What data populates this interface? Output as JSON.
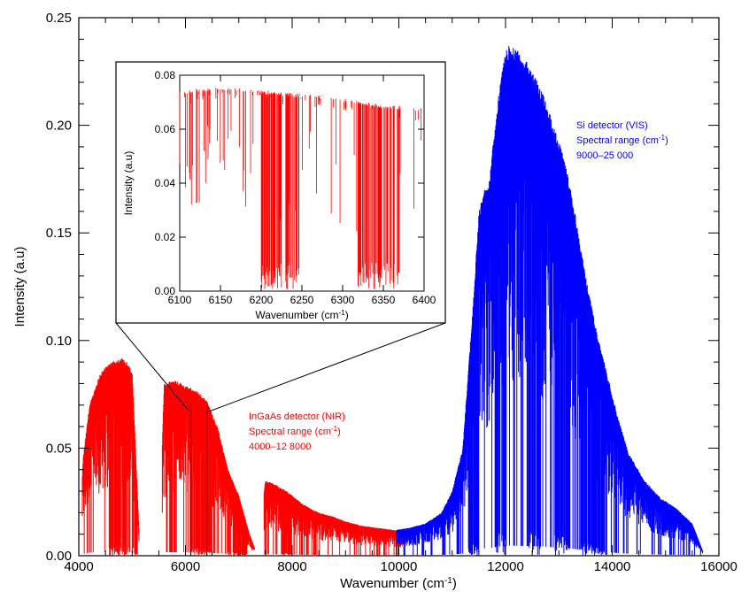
{
  "chart_data": [
    {
      "type": "line",
      "title": "",
      "xlabel": "Wavenumber (cm",
      "xlabel_sup": "-1",
      "xlabel_tail": ")",
      "ylabel": "Intensity (a.u)",
      "xlim": [
        4000,
        16000
      ],
      "ylim": [
        0,
        0.25
      ],
      "xticks": [
        4000,
        6000,
        8000,
        10000,
        12000,
        14000,
        16000
      ],
      "xtick_labels": [
        "4000",
        "6000",
        "8000",
        "10000",
        "12000",
        "14000",
        "16000"
      ],
      "yticks": [
        0,
        0.05,
        0.1,
        0.15,
        0.2,
        0.25
      ],
      "ytick_labels": [
        "0.00",
        "0.05",
        "0.10",
        "0.15",
        "0.20",
        "0.25"
      ],
      "series": [
        {
          "color": "#ff0000",
          "envelope": {
            "x": [
              4000,
              4080,
              4200,
              4400,
              4600,
              4800,
              4900,
              5000,
              5150,
              5300,
              5500,
              5600,
              5800,
              6000,
              6200,
              6400,
              6600,
              6800,
              7000,
              7200,
              7350,
              7400,
              7450,
              7500,
              7700,
              7900,
              8200,
              8500,
              8800,
              9000,
              9300,
              9600,
              9900,
              10100
            ],
            "y": [
              0.0,
              0.045,
              0.07,
              0.085,
              0.09,
              0.092,
              0.09,
              0.086,
              0.0,
              0.0,
              0.0,
              0.08,
              0.082,
              0.079,
              0.077,
              0.072,
              0.06,
              0.04,
              0.028,
              0.01,
              0.0,
              0.0,
              0.025,
              0.035,
              0.033,
              0.03,
              0.024,
              0.02,
              0.018,
              0.016,
              0.014,
              0.013,
              0.012,
              0.011
            ]
          },
          "gaps": [
            [
              4000,
              4060
            ],
            [
              5130,
              5560
            ],
            [
              7300,
              7470
            ]
          ],
          "deep_bands": [
            [
              4550,
              4950
            ],
            [
              5000,
              5100
            ],
            [
              6100,
              6500
            ],
            [
              6800,
              7150
            ],
            [
              7800,
              8000
            ]
          ]
        },
        {
          "color": "#0000ff",
          "envelope": {
            "x": [
              9950,
              10200,
              10500,
              10800,
              11000,
              11200,
              11400,
              11500,
              11600,
              11700,
              11800,
              11900,
              12000,
              12100,
              12200,
              12300,
              12400,
              12500,
              12700,
              12900,
              13100,
              13300,
              13500,
              13700,
              13900,
              14100,
              14300,
              14600,
              14900,
              15200,
              15500,
              15700
            ],
            "y": [
              0.012,
              0.013,
              0.015,
              0.02,
              0.03,
              0.05,
              0.12,
              0.16,
              0.17,
              0.175,
              0.2,
              0.22,
              0.235,
              0.238,
              0.236,
              0.232,
              0.23,
              0.225,
              0.215,
              0.2,
              0.185,
              0.16,
              0.13,
              0.105,
              0.085,
              0.065,
              0.048,
              0.035,
              0.027,
              0.022,
              0.015,
              0.002
            ]
          },
          "deep_bands": [
            [
              11300,
              11500
            ],
            [
              11800,
              12000
            ],
            [
              12400,
              12700
            ],
            [
              12900,
              13200
            ],
            [
              13400,
              13900
            ]
          ]
        }
      ],
      "markers": [
        6100,
        6400
      ],
      "annotations": {
        "ingaas": {
          "color": "#ff0000",
          "line1": "InGaAs detector (NIR)",
          "line2": "Spectral range (cm",
          "line2_sup": "-1",
          "line2_tail": ")",
          "line3": "4000–12 8000"
        },
        "si": {
          "color": "#0000ff",
          "line1": "Si detector (VIS)",
          "line2": "Spectral range (cm",
          "line2_sup": "-1",
          "line2_tail": ")",
          "line3": "9000–25 000"
        }
      }
    },
    {
      "type": "line",
      "title": "",
      "xlabel": "Wavenumber (cm",
      "xlabel_sup": "-1",
      "xlabel_tail": ")",
      "ylabel": "Intensity (a.u)",
      "xlim": [
        6100,
        6400
      ],
      "ylim": [
        0,
        0.08
      ],
      "xticks": [
        6100,
        6150,
        6200,
        6250,
        6300,
        6350,
        6400
      ],
      "xtick_labels": [
        "6100",
        "6150",
        "6200",
        "6250",
        "6300",
        "6350",
        "6400"
      ],
      "yticks": [
        0,
        0.02,
        0.04,
        0.06,
        0.08
      ],
      "ytick_labels": [
        "0.00",
        "0.02",
        "0.04",
        "0.06",
        "0.08"
      ],
      "series": [
        {
          "color": "#ff0000",
          "baseline": {
            "x": [
              6100,
              6120,
              6150,
              6180,
              6200,
              6220,
              6250,
              6280,
              6300,
              6320,
              6350,
              6380,
              6400
            ],
            "y": [
              0.074,
              0.075,
              0.0755,
              0.075,
              0.0745,
              0.074,
              0.073,
              0.0725,
              0.072,
              0.0705,
              0.069,
              0.0685,
              0.068
            ]
          },
          "deep_bands": [
            [
              6200,
              6225
            ],
            [
              6230,
              6248
            ],
            [
              6318,
              6348
            ],
            [
              6350,
              6370
            ]
          ]
        }
      ]
    }
  ]
}
